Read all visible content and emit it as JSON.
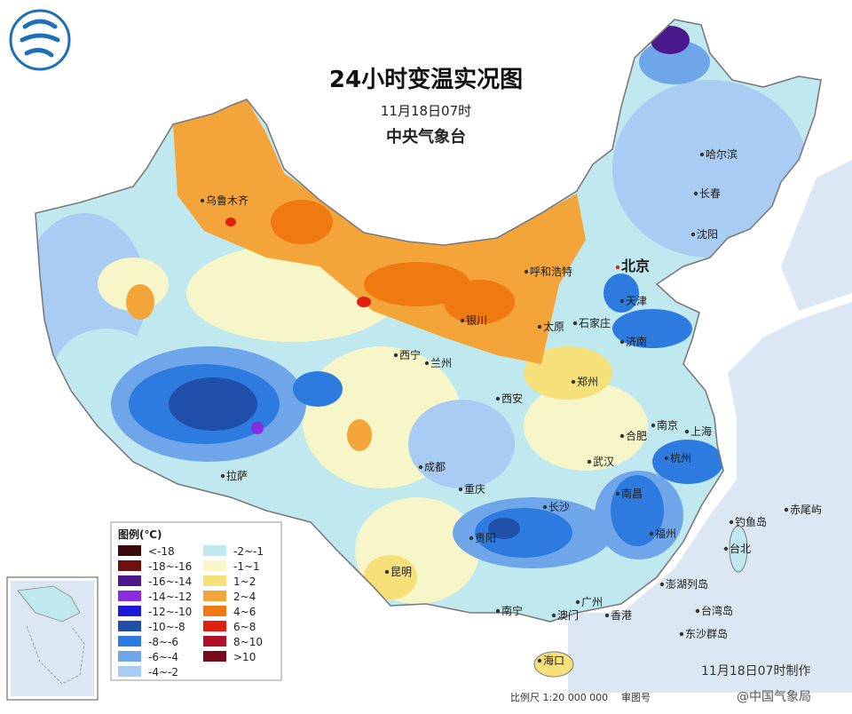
{
  "title": "24小时变温实况图",
  "date": "11月18日07时",
  "agency": "中央气象台",
  "legend": {
    "title": "图例(℃)",
    "items": [
      {
        "label": "<-18",
        "color": "#3a0a0a"
      },
      {
        "label": "-18~-16",
        "color": "#6e1010"
      },
      {
        "label": "-16~-14",
        "color": "#4a1a8c"
      },
      {
        "label": "-14~-12",
        "color": "#8a2be2"
      },
      {
        "label": "-12~-10",
        "color": "#1a1ad8"
      },
      {
        "label": "-10~-8",
        "color": "#1f4fa8"
      },
      {
        "label": "-8~-6",
        "color": "#2e7be0"
      },
      {
        "label": "-6~-4",
        "color": "#6fa6ea"
      },
      {
        "label": "-4~-2",
        "color": "#a9cdf2"
      },
      {
        "label": "-2~-1",
        "color": "#bfe9ee"
      },
      {
        "label": "-1~1",
        "color": "#f7f6c8"
      },
      {
        "label": "1~2",
        "color": "#f6e07a"
      },
      {
        "label": "2~4",
        "color": "#f4a53a"
      },
      {
        "label": "4~6",
        "color": "#ef7a12"
      },
      {
        "label": "6~8",
        "color": "#e02010"
      },
      {
        "label": "8~10",
        "color": "#b0102a"
      },
      {
        "label": ">10",
        "color": "#7a0a1a"
      }
    ]
  },
  "cities": [
    {
      "name": "乌鲁木齐"
    },
    {
      "name": "哈尔滨"
    },
    {
      "name": "长春"
    },
    {
      "name": "沈阳"
    },
    {
      "name": "北京"
    },
    {
      "name": "天津"
    },
    {
      "name": "呼和浩特"
    },
    {
      "name": "石家庄"
    },
    {
      "name": "太原"
    },
    {
      "name": "济南"
    },
    {
      "name": "银川"
    },
    {
      "name": "西宁"
    },
    {
      "name": "兰州"
    },
    {
      "name": "西安"
    },
    {
      "name": "郑州"
    },
    {
      "name": "合肥"
    },
    {
      "name": "南京"
    },
    {
      "name": "上海"
    },
    {
      "name": "杭州"
    },
    {
      "name": "武汉"
    },
    {
      "name": "南昌"
    },
    {
      "name": "长沙"
    },
    {
      "name": "拉萨"
    },
    {
      "name": "成都"
    },
    {
      "name": "重庆"
    },
    {
      "name": "贵阳"
    },
    {
      "name": "昆明"
    },
    {
      "name": "南宁"
    },
    {
      "name": "广州"
    },
    {
      "name": "香港"
    },
    {
      "name": "澳门"
    },
    {
      "name": "福州"
    },
    {
      "name": "台北"
    },
    {
      "name": "海口"
    },
    {
      "name": "钓鱼岛"
    },
    {
      "name": "赤尾屿"
    },
    {
      "name": "澎湖列岛"
    },
    {
      "name": "台湾岛"
    },
    {
      "name": "东沙群岛"
    }
  ],
  "footer": {
    "made": "11月18日07时制作",
    "scale": "比例尺 1:20 000 000",
    "review": "审图号",
    "watermark": "@中国气象局"
  }
}
